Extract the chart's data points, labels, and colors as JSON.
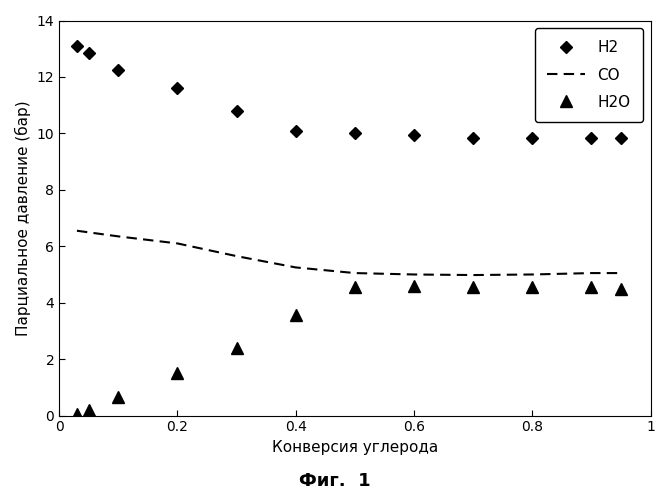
{
  "h2_x": [
    0.03,
    0.05,
    0.1,
    0.2,
    0.3,
    0.4,
    0.5,
    0.6,
    0.7,
    0.8,
    0.9,
    0.95
  ],
  "h2_y": [
    13.1,
    12.85,
    12.25,
    11.6,
    10.8,
    10.1,
    10.0,
    9.95,
    9.85,
    9.85,
    9.85,
    9.82
  ],
  "co_x": [
    0.03,
    0.1,
    0.2,
    0.3,
    0.4,
    0.5,
    0.6,
    0.7,
    0.8,
    0.9,
    0.95
  ],
  "co_y": [
    6.55,
    6.35,
    6.1,
    5.65,
    5.25,
    5.05,
    5.0,
    4.98,
    5.0,
    5.05,
    5.05
  ],
  "h2o_x": [
    0.03,
    0.05,
    0.1,
    0.2,
    0.3,
    0.4,
    0.5,
    0.6,
    0.7,
    0.8,
    0.9,
    0.95
  ],
  "h2o_y": [
    0.05,
    0.2,
    0.65,
    1.5,
    2.4,
    3.55,
    4.55,
    4.6,
    4.55,
    4.55,
    4.55,
    4.5
  ],
  "xlabel": "Конверсия углерода",
  "ylabel": "Парциальное давление (бар)",
  "title": "Фиг.  1",
  "legend_h2": "H2",
  "legend_co": "CO",
  "legend_h2o": "H2O",
  "xlim": [
    0,
    1.0
  ],
  "ylim": [
    0,
    14
  ],
  "xticks": [
    0,
    0.2,
    0.4,
    0.6,
    0.8,
    1.0
  ],
  "yticks": [
    0,
    2,
    4,
    6,
    8,
    10,
    12,
    14
  ],
  "bg_color": "#ffffff",
  "plot_bg_color": "#ffffff"
}
